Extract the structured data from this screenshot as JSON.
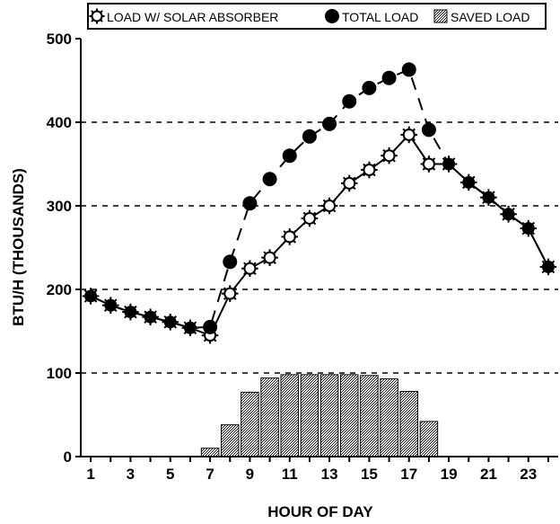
{
  "chart_data": {
    "type": "line",
    "title": "",
    "xlabel": "HOUR OF DAY",
    "ylabel": "BTU/H (THOUSANDS)",
    "xlim": [
      0.5,
      24.5
    ],
    "ylim": [
      0,
      500
    ],
    "x_ticks": [
      "1",
      "3",
      "5",
      "7",
      "9",
      "11",
      "13",
      "15",
      "17",
      "19",
      "21",
      "23"
    ],
    "y_ticks": [
      "0",
      "100",
      "200",
      "300",
      "400",
      "500"
    ],
    "grid": "dashed horizontal at 100-400",
    "legend_position": "top",
    "x": [
      1,
      2,
      3,
      4,
      5,
      6,
      7,
      8,
      9,
      10,
      11,
      12,
      13,
      14,
      15,
      16,
      17,
      18,
      19,
      20,
      21,
      22,
      23,
      24
    ],
    "series": [
      {
        "name": "LOAD W/ SOLAR ABSORBER",
        "marker": "open-sun",
        "line": "solid",
        "values": [
          192,
          181,
          173,
          167,
          161,
          154,
          145,
          195,
          225,
          238,
          263,
          285,
          300,
          327,
          343,
          360,
          385,
          350,
          350,
          328,
          310,
          290,
          273,
          227
        ]
      },
      {
        "name": "TOTAL LOAD",
        "marker": "filled-circle",
        "line": "dashed",
        "values": [
          192,
          181,
          173,
          167,
          161,
          154,
          155,
          233,
          303,
          332,
          360,
          383,
          398,
          425,
          441,
          453,
          463,
          391,
          350,
          328,
          310,
          290,
          273,
          227
        ]
      },
      {
        "name": "SAVED LOAD",
        "type": "bar",
        "values": [
          0,
          0,
          0,
          0,
          0,
          0,
          10,
          38,
          77,
          94,
          98,
          98,
          98,
          98,
          97,
          93,
          78,
          42,
          0,
          0,
          0,
          0,
          0,
          0
        ]
      }
    ]
  }
}
